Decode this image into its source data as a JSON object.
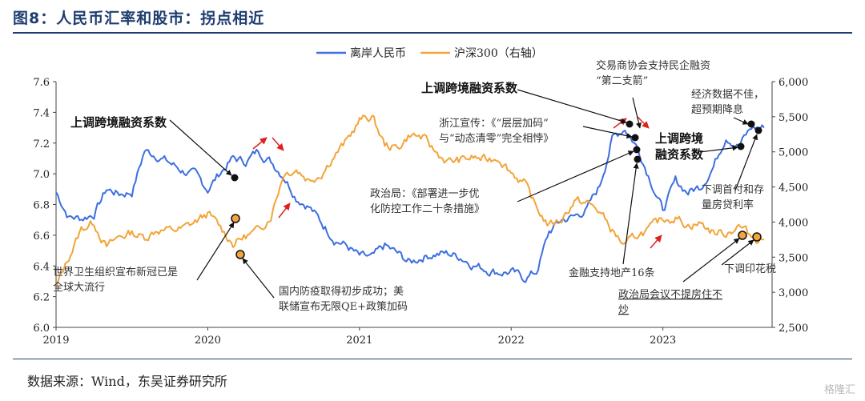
{
  "figure_title": "图8：人民币汇率和股市：拐点相近",
  "source": "数据来源：Wind，东吴证券研究所",
  "watermark": "格隆汇",
  "chart_data": {
    "type": "line",
    "x_ticks": [
      "2019",
      "2020",
      "2021",
      "2022",
      "2023"
    ],
    "y_left": {
      "lim": [
        6.0,
        7.6
      ],
      "ticks": [
        "6.0",
        "6.2",
        "6.4",
        "6.6",
        "6.8",
        "7.0",
        "7.2",
        "7.4",
        "7.6"
      ]
    },
    "y_right": {
      "lim": [
        2500,
        6000
      ],
      "ticks": [
        "2,500",
        "3,000",
        "3,500",
        "4,000",
        "4,500",
        "5,000",
        "5,500",
        "6,000"
      ]
    },
    "legend_position": "top-center",
    "series": [
      {
        "name": "离岸人民币",
        "axis": "left",
        "color": "#3d6fe0",
        "points": [
          [
            "2019-01",
            6.88
          ],
          [
            "2019-02",
            6.72
          ],
          [
            "2019-03",
            6.71
          ],
          [
            "2019-04",
            6.74
          ],
          [
            "2019-05",
            6.9
          ],
          [
            "2019-06",
            6.87
          ],
          [
            "2019-07",
            6.88
          ],
          [
            "2019-08",
            7.15
          ],
          [
            "2019-09",
            7.12
          ],
          [
            "2019-10",
            7.07
          ],
          [
            "2019-11",
            7.02
          ],
          [
            "2019-12",
            6.99
          ],
          [
            "2020-01",
            6.9
          ],
          [
            "2020-02",
            7.01
          ],
          [
            "2020-03",
            7.1
          ],
          [
            "2020-04",
            7.08
          ],
          [
            "2020-05",
            7.15
          ],
          [
            "2020-06",
            7.08
          ],
          [
            "2020-07",
            6.99
          ],
          [
            "2020-08",
            6.85
          ],
          [
            "2020-09",
            6.79
          ],
          [
            "2020-10",
            6.68
          ],
          [
            "2020-11",
            6.58
          ],
          [
            "2020-12",
            6.53
          ],
          [
            "2021-01",
            6.46
          ],
          [
            "2021-02",
            6.45
          ],
          [
            "2021-03",
            6.53
          ],
          [
            "2021-04",
            6.48
          ],
          [
            "2021-05",
            6.42
          ],
          [
            "2021-06",
            6.46
          ],
          [
            "2021-07",
            6.48
          ],
          [
            "2021-08",
            6.48
          ],
          [
            "2021-09",
            6.46
          ],
          [
            "2021-10",
            6.41
          ],
          [
            "2021-11",
            6.38
          ],
          [
            "2021-12",
            6.36
          ],
          [
            "2022-01",
            6.36
          ],
          [
            "2022-02",
            6.32
          ],
          [
            "2022-03",
            6.36
          ],
          [
            "2022-04",
            6.62
          ],
          [
            "2022-05",
            6.7
          ],
          [
            "2022-06",
            6.72
          ],
          [
            "2022-07",
            6.77
          ],
          [
            "2022-08",
            6.92
          ],
          [
            "2022-09",
            7.23
          ],
          [
            "2022-10",
            7.3
          ],
          [
            "2022-11",
            7.17
          ],
          [
            "2022-12",
            6.97
          ],
          [
            "2023-01",
            6.76
          ],
          [
            "2023-02",
            6.95
          ],
          [
            "2023-03",
            6.88
          ],
          [
            "2023-04",
            6.92
          ],
          [
            "2023-05",
            7.05
          ],
          [
            "2023-06",
            7.25
          ],
          [
            "2023-07",
            7.18
          ],
          [
            "2023-08",
            7.3
          ],
          [
            "2023-09",
            7.3
          ]
        ]
      },
      {
        "name": "沪深300（右轴）",
        "axis": "right",
        "color": "#f3a43a",
        "points": [
          [
            "2019-01",
            3060
          ],
          [
            "2019-02",
            3500
          ],
          [
            "2019-03",
            3900
          ],
          [
            "2019-04",
            4000
          ],
          [
            "2019-05",
            3640
          ],
          [
            "2019-06",
            3790
          ],
          [
            "2019-07",
            3850
          ],
          [
            "2019-08",
            3780
          ],
          [
            "2019-09",
            3900
          ],
          [
            "2019-10",
            3880
          ],
          [
            "2019-11",
            3900
          ],
          [
            "2019-12",
            4000
          ],
          [
            "2020-01",
            4120
          ],
          [
            "2020-02",
            3920
          ],
          [
            "2020-03",
            3700
          ],
          [
            "2020-04",
            3800
          ],
          [
            "2020-05",
            3870
          ],
          [
            "2020-06",
            4100
          ],
          [
            "2020-07",
            4700
          ],
          [
            "2020-08",
            4760
          ],
          [
            "2020-09",
            4600
          ],
          [
            "2020-10",
            4700
          ],
          [
            "2020-11",
            4950
          ],
          [
            "2020-12",
            5150
          ],
          [
            "2021-01",
            5450
          ],
          [
            "2021-02",
            5500
          ],
          [
            "2021-03",
            5100
          ],
          [
            "2021-04",
            5050
          ],
          [
            "2021-05",
            5250
          ],
          [
            "2021-06",
            5200
          ],
          [
            "2021-07",
            5000
          ],
          [
            "2021-08",
            4860
          ],
          [
            "2021-09",
            4880
          ],
          [
            "2021-10",
            4920
          ],
          [
            "2021-11",
            4880
          ],
          [
            "2021-12",
            4930
          ],
          [
            "2022-01",
            4720
          ],
          [
            "2022-02",
            4560
          ],
          [
            "2022-03",
            4200
          ],
          [
            "2022-04",
            3950
          ],
          [
            "2022-05",
            4050
          ],
          [
            "2022-06",
            4300
          ],
          [
            "2022-07",
            4270
          ],
          [
            "2022-08",
            4150
          ],
          [
            "2022-09",
            3880
          ],
          [
            "2022-10",
            3650
          ],
          [
            "2022-11",
            3820
          ],
          [
            "2022-12",
            3900
          ],
          [
            "2023-01",
            4050
          ],
          [
            "2023-02",
            4070
          ],
          [
            "2023-03",
            3960
          ],
          [
            "2023-04",
            3980
          ],
          [
            "2023-05",
            3850
          ],
          [
            "2023-06",
            3850
          ],
          [
            "2023-07",
            3950
          ],
          [
            "2023-08",
            3800
          ],
          [
            "2023-09",
            3750
          ]
        ]
      }
    ],
    "annotations": [
      "上调跨境融资系数",
      "世界卫生组织宣布新冠已是全球大流行",
      "国内防疫取得初步成功；美联储宣布无限QE+政策加码",
      "上调跨境融资系数",
      "浙江宣传：《“层层加码”与“动态清零”完全相悖》",
      "政治局：《部署进一步优化防控工作二十条措施》",
      "交易商协会支持民企融资“第二支箭”",
      "金融支持地产16条",
      "政治局会议不提房住不炒",
      "经济数据不佳，超预期降息",
      "上调跨境融资系数",
      "下调首付和存量房贷利率",
      "下调印花税"
    ]
  }
}
